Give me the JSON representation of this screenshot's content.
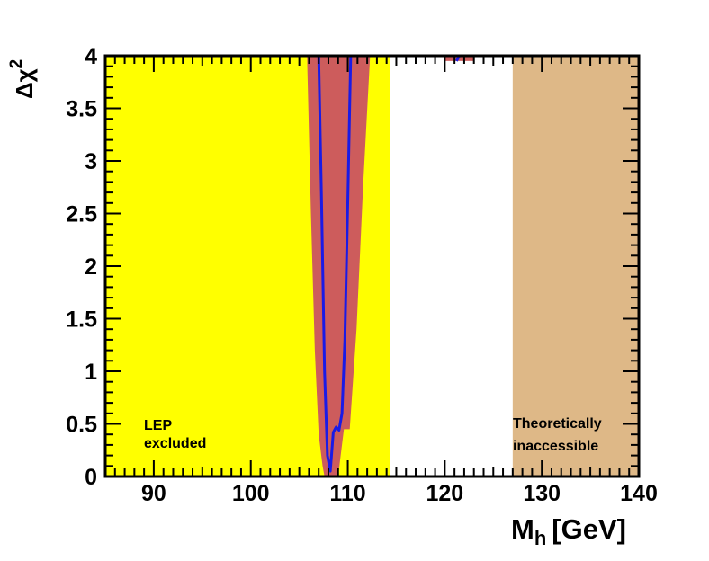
{
  "chart_data": {
    "type": "line",
    "xlabel_main": "M",
    "xlabel_sub": "h",
    "xlabel_unit": "[GeV]",
    "ylabel_main": "Δχ",
    "ylabel_sup": "2",
    "xlim": [
      85,
      140
    ],
    "ylim": [
      0,
      4
    ],
    "x_ticks": [
      90,
      100,
      110,
      120,
      130,
      140
    ],
    "x_tick_labels": [
      "90",
      "100",
      "110",
      "120",
      "130",
      "140"
    ],
    "y_ticks": [
      0,
      0.5,
      1,
      1.5,
      2,
      2.5,
      3,
      3.5,
      4
    ],
    "y_tick_labels": [
      "0",
      "0.5",
      "1",
      "1.5",
      "2",
      "2.5",
      "3",
      "3.5",
      "4"
    ],
    "regions": [
      {
        "name": "LEP excluded",
        "x_range": [
          85,
          114.4
        ],
        "color": "#ffff00",
        "label_lines": [
          "LEP",
          "excluded"
        ]
      },
      {
        "name": "Theoretically inaccessible",
        "x_range": [
          127,
          140
        ],
        "color": "#deb887",
        "label_lines": [
          "Theoretically",
          "inaccessible"
        ]
      }
    ],
    "band_color": "#cd5c5c",
    "curve_color": "#1a1ae6",
    "series": [
      {
        "name": "Δχ² curve",
        "x": [
          107.0,
          107.3,
          107.6,
          107.9,
          108.2,
          108.5,
          108.8,
          109.1,
          109.4,
          109.7,
          110.0,
          110.3
        ],
        "values": [
          4.0,
          2.6,
          1.0,
          0.2,
          0.05,
          0.42,
          0.47,
          0.44,
          0.6,
          1.3,
          2.6,
          4.0
        ]
      }
    ],
    "band": {
      "x_upper": [
        105.8,
        106.2,
        106.6,
        107.0,
        107.4,
        107.6
      ],
      "y_upper": [
        4.0,
        2.5,
        1.2,
        0.4,
        0.1,
        0.0
      ],
      "x_lower": [
        109.0,
        109.6,
        110.2,
        110.9,
        111.6,
        112.3
      ],
      "y_lower": [
        0.0,
        0.45,
        0.45,
        1.4,
        2.8,
        4.0
      ]
    },
    "upper_band_segment": {
      "x_range": [
        119.9,
        123.0
      ],
      "y_range": [
        3.95,
        4.0
      ]
    },
    "upper_curve_segment": {
      "x": [
        121.2,
        121.5
      ],
      "values": [
        3.95,
        4.0
      ]
    }
  }
}
